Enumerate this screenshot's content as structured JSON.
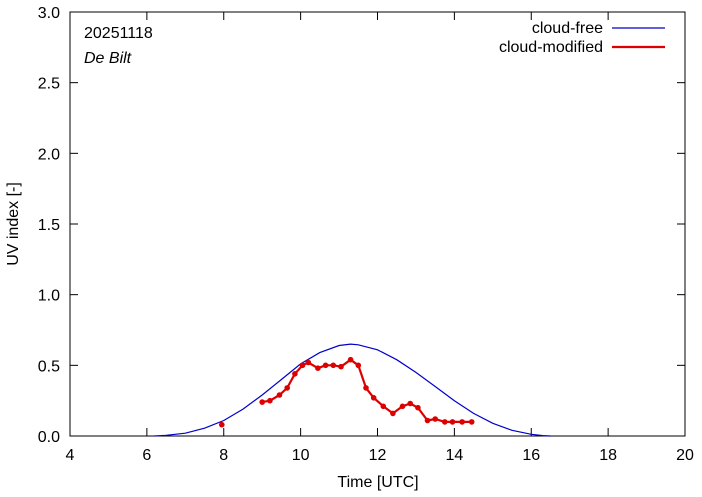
{
  "chart_data": {
    "type": "line",
    "title": "",
    "xlabel": "Time  [UTC]",
    "ylabel": "UV index  [-]",
    "xlim": [
      4,
      20
    ],
    "ylim": [
      0,
      3.0
    ],
    "xticks": [
      4,
      6,
      8,
      10,
      12,
      14,
      16,
      18,
      20
    ],
    "yticks": [
      0.0,
      0.5,
      1.0,
      1.5,
      2.0,
      2.5,
      3.0
    ],
    "xtick_labels": [
      "4",
      "6",
      "8",
      "10",
      "12",
      "14",
      "16",
      "18",
      "20"
    ],
    "ytick_labels": [
      "0.0",
      "0.5",
      "1.0",
      "1.5",
      "2.0",
      "2.5",
      "3.0"
    ],
    "grid": false,
    "legend_position": "top-right",
    "annotations": {
      "date": "20251118",
      "station": "De Bilt"
    },
    "series": [
      {
        "name": "cloud-free",
        "color": "#0000cc",
        "style": "line",
        "x": [
          6.2,
          6.5,
          7.0,
          7.5,
          8.0,
          8.5,
          9.0,
          9.5,
          10.0,
          10.5,
          11.0,
          11.3,
          11.5,
          12.0,
          12.5,
          13.0,
          13.5,
          14.0,
          14.5,
          15.0,
          15.5,
          16.0,
          16.3,
          16.5
        ],
        "y": [
          0.0,
          0.005,
          0.02,
          0.055,
          0.11,
          0.19,
          0.29,
          0.4,
          0.51,
          0.59,
          0.64,
          0.65,
          0.645,
          0.61,
          0.54,
          0.45,
          0.35,
          0.25,
          0.16,
          0.09,
          0.04,
          0.012,
          0.003,
          0.0
        ]
      },
      {
        "name": "cloud-modified",
        "color": "#dd0000",
        "style": "line-points",
        "segments": [
          {
            "x": [
              7.95
            ],
            "y": [
              0.08
            ]
          },
          {
            "x": [
              9.0,
              9.2,
              9.45,
              9.65,
              9.85,
              10.05,
              10.2,
              10.45,
              10.65,
              10.85,
              11.05,
              11.3,
              11.5,
              11.7,
              11.9,
              12.15,
              12.4,
              12.65,
              12.85,
              13.05,
              13.3,
              13.5,
              13.75,
              13.95,
              14.2,
              14.45
            ],
            "y": [
              0.24,
              0.25,
              0.29,
              0.34,
              0.44,
              0.5,
              0.52,
              0.48,
              0.5,
              0.5,
              0.49,
              0.54,
              0.5,
              0.34,
              0.27,
              0.21,
              0.16,
              0.21,
              0.23,
              0.2,
              0.11,
              0.12,
              0.1,
              0.1,
              0.1,
              0.1
            ]
          }
        ]
      }
    ]
  }
}
